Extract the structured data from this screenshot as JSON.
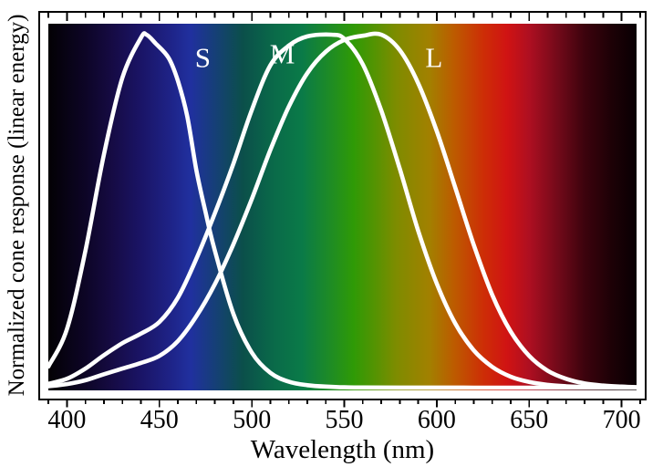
{
  "figure": {
    "ylabel": "Normalized cone response (linear energy)",
    "xlabel": "Wavelength (nm)"
  },
  "chart_data": {
    "type": "line",
    "title": "",
    "xlabel": "Wavelength (nm)",
    "ylabel": "Normalized cone response (linear energy)",
    "xlim": [
      385,
      713
    ],
    "ylim": [
      0,
      1.1
    ],
    "grid": false,
    "legend": "inline-labels",
    "x_major_ticks": [
      400,
      450,
      500,
      550,
      600,
      650,
      700
    ],
    "x_tick_labels": [
      "400",
      "450",
      "500",
      "550",
      "600",
      "650",
      "700"
    ],
    "x_minor_tick_step": 10,
    "x_minor_range": [
      390,
      710
    ],
    "curve_color": "#ffffff",
    "frame_color": "#000000",
    "series": [
      {
        "name": "S",
        "color": "#ffffff",
        "x": [
          390,
          400,
          410,
          420,
          430,
          440,
          443,
          448,
          455,
          460,
          465,
          470,
          475,
          480,
          490,
          500,
          510,
          520,
          530,
          540,
          550,
          560,
          580,
          620,
          710
        ],
        "y": [
          0.06,
          0.166,
          0.388,
          0.661,
          0.878,
          0.991,
          1.0,
          0.975,
          0.934,
          0.869,
          0.77,
          0.616,
          0.496,
          0.388,
          0.209,
          0.099,
          0.042,
          0.017,
          0.007,
          0.003,
          0.001,
          0.0005,
          0.0002,
          0.0001,
          0.0001
        ]
      },
      {
        "name": "M",
        "color": "#ffffff",
        "x": [
          390,
          400,
          410,
          420,
          430,
          440,
          450,
          460,
          470,
          480,
          490,
          500,
          510,
          520,
          530,
          543,
          550,
          560,
          570,
          580,
          590,
          600,
          610,
          620,
          630,
          640,
          650,
          660,
          670,
          680,
          690,
          700,
          710
        ],
        "y": [
          0.011,
          0.025,
          0.054,
          0.092,
          0.126,
          0.153,
          0.186,
          0.255,
          0.365,
          0.494,
          0.634,
          0.787,
          0.913,
          0.969,
          0.995,
          1.0,
          0.988,
          0.916,
          0.785,
          0.62,
          0.444,
          0.295,
          0.182,
          0.106,
          0.059,
          0.031,
          0.016,
          0.008,
          0.004,
          0.002,
          0.001,
          0.0006,
          0.0003
        ]
      },
      {
        "name": "L",
        "color": "#ffffff",
        "x": [
          390,
          400,
          410,
          420,
          430,
          440,
          450,
          460,
          470,
          480,
          490,
          500,
          510,
          520,
          530,
          540,
          550,
          560,
          570,
          580,
          590,
          600,
          610,
          620,
          630,
          640,
          650,
          660,
          670,
          680,
          690,
          700,
          710
        ],
        "y": [
          0.004,
          0.01,
          0.021,
          0.038,
          0.054,
          0.07,
          0.09,
          0.132,
          0.202,
          0.293,
          0.406,
          0.535,
          0.673,
          0.796,
          0.891,
          0.952,
          0.985,
          0.997,
          1.0,
          0.956,
          0.862,
          0.727,
          0.567,
          0.405,
          0.263,
          0.159,
          0.09,
          0.048,
          0.025,
          0.012,
          0.006,
          0.003,
          0.001
        ]
      }
    ],
    "annotations": [
      {
        "label": "S",
        "nm": 473.5,
        "r": 0.935
      },
      {
        "label": "M",
        "nm": 516.5,
        "r": 0.945
      },
      {
        "label": "L",
        "nm": 598.5,
        "r": 0.935
      }
    ],
    "background_spectrum": {
      "nm_range": [
        390,
        708
      ],
      "stops": [
        {
          "nm": 390,
          "color": "#030104"
        },
        {
          "nm": 410,
          "color": "#0d0526"
        },
        {
          "nm": 425,
          "color": "#160b45"
        },
        {
          "nm": 440,
          "color": "#1a1466"
        },
        {
          "nm": 455,
          "color": "#1e2285"
        },
        {
          "nm": 467,
          "color": "#20309f"
        },
        {
          "nm": 481,
          "color": "#154074"
        },
        {
          "nm": 495,
          "color": "#0b4f4a"
        },
        {
          "nm": 512,
          "color": "#0a6a49"
        },
        {
          "nm": 527,
          "color": "#0a7a48"
        },
        {
          "nm": 541,
          "color": "#1c8a28"
        },
        {
          "nm": 555,
          "color": "#2f9a06"
        },
        {
          "nm": 567,
          "color": "#569302"
        },
        {
          "nm": 578,
          "color": "#7e8c00"
        },
        {
          "nm": 596,
          "color": "#a28000"
        },
        {
          "nm": 609,
          "color": "#bc5c00"
        },
        {
          "nm": 625,
          "color": "#cd2e06"
        },
        {
          "nm": 638,
          "color": "#d01313"
        },
        {
          "nm": 650,
          "color": "#ae0f21"
        },
        {
          "nm": 665,
          "color": "#740a1a"
        },
        {
          "nm": 680,
          "color": "#3c030d"
        },
        {
          "nm": 695,
          "color": "#1c0106"
        },
        {
          "nm": 708,
          "color": "#090003"
        }
      ]
    }
  }
}
